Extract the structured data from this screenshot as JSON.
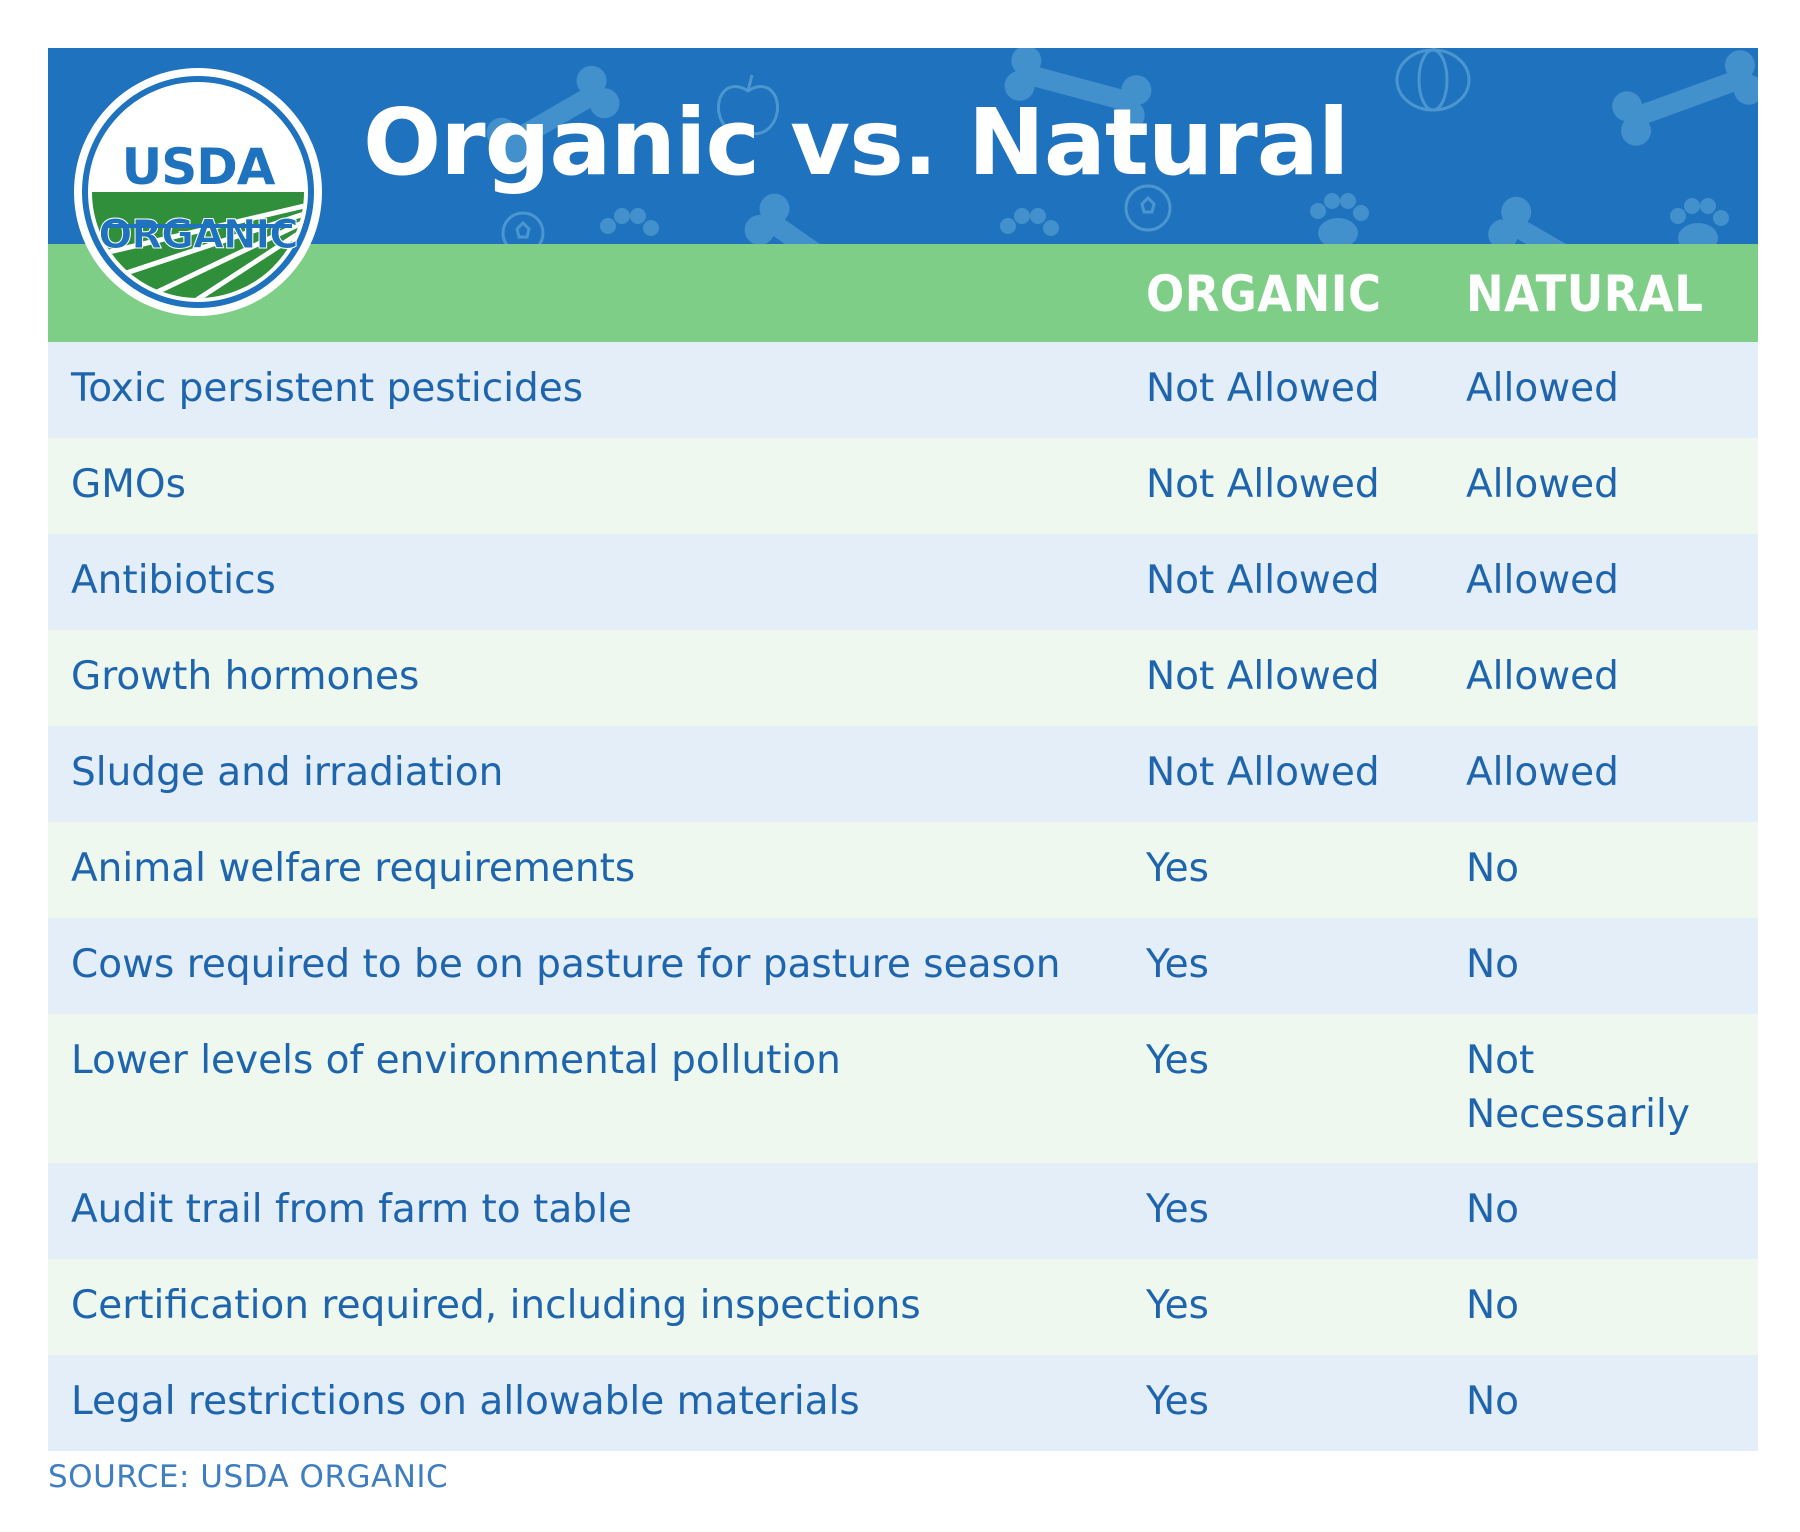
{
  "title": "Organic vs. Natural",
  "badge": {
    "line1": "USDA",
    "line2": "ORGANIC"
  },
  "columns": {
    "organic": "ORGANIC",
    "natural": "NATURAL"
  },
  "rows": [
    {
      "feature": "Toxic persistent pesticides",
      "organic": "Not Allowed",
      "natural": "Allowed"
    },
    {
      "feature": "GMOs",
      "organic": "Not Allowed",
      "natural": "Allowed"
    },
    {
      "feature": "Antibiotics",
      "organic": "Not Allowed",
      "natural": "Allowed"
    },
    {
      "feature": "Growth hormones",
      "organic": "Not Allowed",
      "natural": "Allowed"
    },
    {
      "feature": "Sludge and irradiation",
      "organic": "Not Allowed",
      "natural": "Allowed"
    },
    {
      "feature": "Animal welfare requirements",
      "organic": "Yes",
      "natural": "No"
    },
    {
      "feature": "Cows required to be on pasture for pasture season",
      "organic": "Yes",
      "natural": "No"
    },
    {
      "feature": "Lower levels of environmental pollution",
      "organic": "Yes",
      "natural": "Not Necessarily"
    },
    {
      "feature": "Audit trail from farm to table",
      "organic": "Yes",
      "natural": "No"
    },
    {
      "feature": "Certification required, including inspections",
      "organic": "Yes",
      "natural": "No"
    },
    {
      "feature": "Legal restrictions on allowable materials",
      "organic": "Yes",
      "natural": "No"
    }
  ],
  "source": "SOURCE: USDA ORGANIC",
  "colors": {
    "banner": "#1f72bd",
    "header": "#7fce87",
    "row_blue": "#e3eef8",
    "row_green": "#eef8ef",
    "text": "#1f65ad"
  }
}
